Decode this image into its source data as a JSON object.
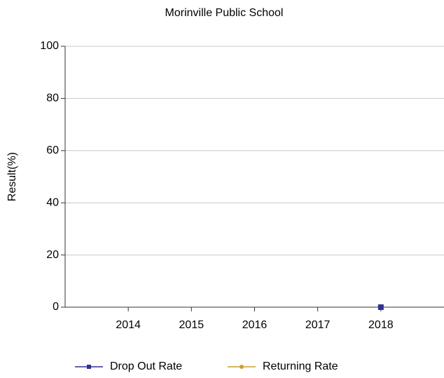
{
  "chart_data": {
    "type": "line",
    "title": "Morinville Public School",
    "ylabel": "Result(%)",
    "categories": [
      "2014",
      "2015",
      "2016",
      "2017",
      "2018"
    ],
    "series": [
      {
        "name": "Drop Out Rate",
        "color": "#2e3192",
        "marker": "square",
        "values": [
          null,
          null,
          null,
          null,
          0
        ]
      },
      {
        "name": "Returning Rate",
        "color": "#c9a030",
        "marker": "circle",
        "values": [
          null,
          null,
          null,
          null,
          null
        ]
      }
    ],
    "ylim": [
      0,
      100
    ],
    "yticks": [
      0,
      20,
      40,
      60,
      80,
      100
    ],
    "grid": true,
    "legend": "bottom"
  }
}
